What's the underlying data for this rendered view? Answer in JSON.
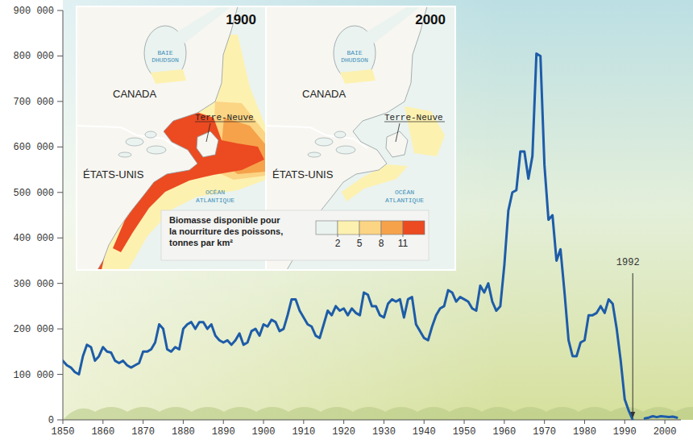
{
  "chart_data": {
    "type": "line",
    "x": [
      1850,
      1851,
      1852,
      1853,
      1854,
      1855,
      1856,
      1857,
      1858,
      1859,
      1860,
      1861,
      1862,
      1863,
      1864,
      1865,
      1866,
      1867,
      1868,
      1869,
      1870,
      1871,
      1872,
      1873,
      1874,
      1875,
      1876,
      1877,
      1878,
      1879,
      1880,
      1881,
      1882,
      1883,
      1884,
      1885,
      1886,
      1887,
      1888,
      1889,
      1890,
      1891,
      1892,
      1893,
      1894,
      1895,
      1896,
      1897,
      1898,
      1899,
      1900,
      1901,
      1902,
      1903,
      1904,
      1905,
      1906,
      1907,
      1908,
      1909,
      1910,
      1911,
      1912,
      1913,
      1914,
      1915,
      1916,
      1917,
      1918,
      1919,
      1920,
      1921,
      1922,
      1923,
      1924,
      1925,
      1926,
      1927,
      1928,
      1929,
      1930,
      1931,
      1932,
      1933,
      1934,
      1935,
      1936,
      1937,
      1938,
      1939,
      1940,
      1941,
      1942,
      1943,
      1944,
      1945,
      1946,
      1947,
      1948,
      1949,
      1950,
      1951,
      1952,
      1953,
      1954,
      1955,
      1956,
      1957,
      1958,
      1959,
      1960,
      1961,
      1962,
      1963,
      1964,
      1965,
      1966,
      1967,
      1968,
      1969,
      1970,
      1971,
      1972,
      1973,
      1974,
      1975,
      1976,
      1977,
      1978,
      1979,
      1980,
      1981,
      1982,
      1983,
      1984,
      1985,
      1986,
      1987,
      1988,
      1989,
      1990,
      1991,
      1992,
      1993,
      1994,
      1995,
      1996,
      1997,
      1998,
      1999,
      2000,
      2001,
      2002,
      2003
    ],
    "series": [
      {
        "color": "#1d5ca8",
        "values": [
          130000,
          120000,
          115000,
          105000,
          100000,
          140000,
          165000,
          160000,
          130000,
          140000,
          160000,
          150000,
          148000,
          130000,
          125000,
          130000,
          120000,
          115000,
          120000,
          125000,
          150000,
          150000,
          155000,
          170000,
          210000,
          200000,
          155000,
          150000,
          160000,
          155000,
          200000,
          210000,
          215000,
          200000,
          215000,
          215000,
          200000,
          210000,
          185000,
          175000,
          170000,
          175000,
          165000,
          175000,
          190000,
          165000,
          170000,
          195000,
          200000,
          185000,
          210000,
          205000,
          220000,
          215000,
          195000,
          200000,
          230000,
          265000,
          265000,
          240000,
          225000,
          210000,
          205000,
          185000,
          180000,
          210000,
          240000,
          230000,
          250000,
          240000,
          245000,
          230000,
          245000,
          235000,
          230000,
          280000,
          275000,
          250000,
          250000,
          230000,
          225000,
          255000,
          265000,
          260000,
          265000,
          225000,
          265000,
          270000,
          210000,
          195000,
          180000,
          175000,
          205000,
          230000,
          245000,
          250000,
          285000,
          280000,
          260000,
          270000,
          265000,
          260000,
          245000,
          240000,
          295000,
          280000,
          300000,
          260000,
          240000,
          250000,
          340000,
          460000,
          500000,
          505000,
          590000,
          590000,
          530000,
          580000,
          805000,
          800000,
          560000,
          440000,
          450000,
          350000,
          375000,
          280000,
          175000,
          140000,
          140000,
          170000,
          175000,
          230000,
          230000,
          235000,
          250000,
          235000,
          265000,
          255000,
          200000,
          130000,
          45000,
          20000,
          0,
          null,
          null,
          3000,
          5000,
          8000,
          6000,
          8000,
          7000,
          6000,
          7000,
          5000
        ]
      }
    ],
    "xlim": [
      1850,
      2004
    ],
    "xticks": [
      1850,
      1860,
      1870,
      1880,
      1890,
      1900,
      1910,
      1920,
      1930,
      1940,
      1950,
      1960,
      1970,
      1980,
      1990,
      2000
    ],
    "ylim": [
      0,
      900000
    ],
    "yticks": [
      0,
      {
        "value": 100000,
        "label": "100 000"
      },
      {
        "value": 200000,
        "label": "200 000"
      },
      {
        "value": 300000,
        "label": "300 000"
      },
      {
        "value": 400000,
        "label": "400 000"
      },
      {
        "value": 500000,
        "label": "500 000"
      },
      {
        "value": 600000,
        "label": "600 000"
      },
      {
        "value": 700000,
        "label": "700 000"
      },
      {
        "value": 800000,
        "label": "800 000"
      },
      {
        "value": 900000,
        "label": "900 000"
      }
    ],
    "grid": false,
    "annotations": [
      {
        "text": "1992",
        "x": 1992,
        "y": 0
      }
    ]
  },
  "inset_map": {
    "panels": [
      {
        "title": "1900",
        "bay_label": [
          "BAIE",
          "DHUDSON"
        ],
        "canada": "CANADA",
        "newfoundland": "Terre-Neuve",
        "usa": "ÉTATS-UNIS",
        "ocean_label": [
          "OCÉAN",
          "ATLANTIQUE"
        ]
      },
      {
        "title": "2000",
        "bay_label": [
          "BAIE",
          "DHUDSON"
        ],
        "canada": "CANADA",
        "newfoundland": "Terre-Neuve",
        "usa": "ÉTATS-UNIS",
        "ocean_label": [
          "OCÉAN",
          "ATLANTIQUE"
        ]
      }
    ],
    "legend": {
      "title_lines": [
        "Biomasse disponible pour",
        "la nourriture des poissons,",
        "tonnes par km²"
      ],
      "colors": [
        "#eaf3ef",
        "#fdf1b0",
        "#fbd484",
        "#f6a24a",
        "#ec4a21"
      ],
      "ticks": [
        2,
        5,
        8,
        11
      ]
    }
  }
}
